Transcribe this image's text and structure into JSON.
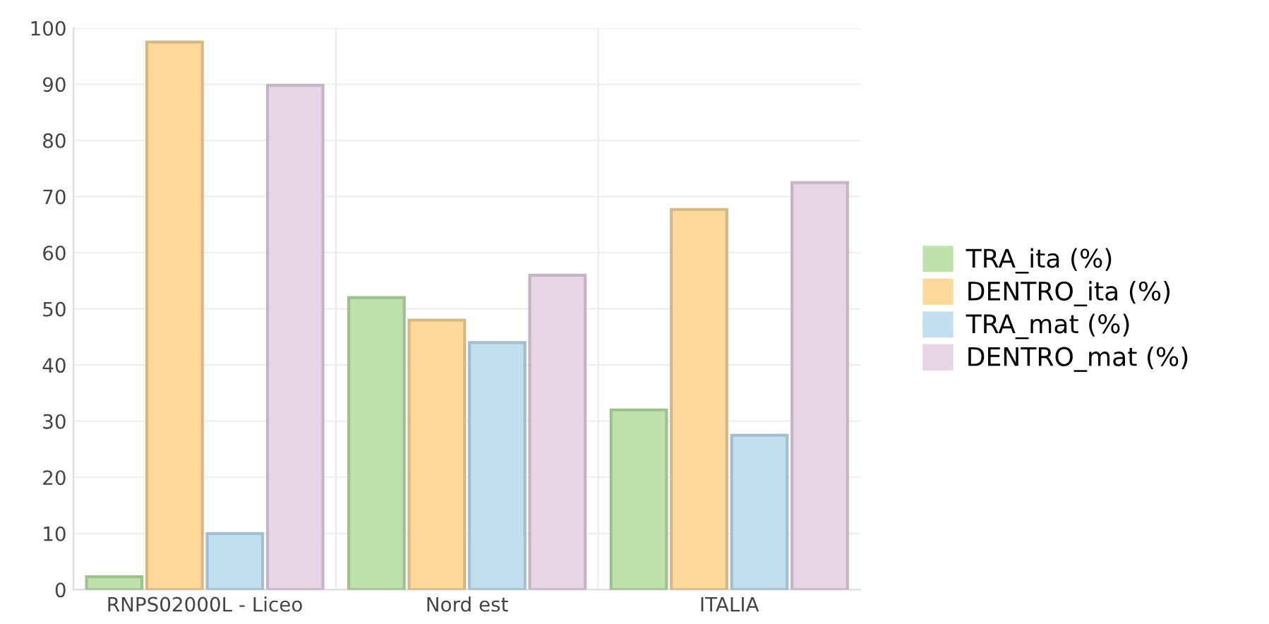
{
  "chart_data": {
    "type": "bar",
    "categories": [
      "RNPS02000L - Liceo",
      "Nord est",
      "ITALIA"
    ],
    "series": [
      {
        "name": "TRA_ita (%)",
        "color": "#bde2ab",
        "values": [
          2.3,
          52,
          32
        ]
      },
      {
        "name": "DENTRO_ita (%)",
        "color": "#fdd89b",
        "values": [
          97.5,
          48,
          67.7
        ]
      },
      {
        "name": "TRA_mat (%)",
        "color": "#c0dff0",
        "values": [
          10,
          44,
          27.5
        ]
      },
      {
        "name": "DENTRO_mat (%)",
        "color": "#e8d4e6",
        "values": [
          89.8,
          56,
          72.5
        ]
      }
    ],
    "ylim": [
      0,
      100
    ],
    "yticks": [
      0,
      10,
      20,
      30,
      40,
      50,
      60,
      70,
      80,
      90,
      100
    ],
    "grid": true,
    "legend": "right"
  }
}
